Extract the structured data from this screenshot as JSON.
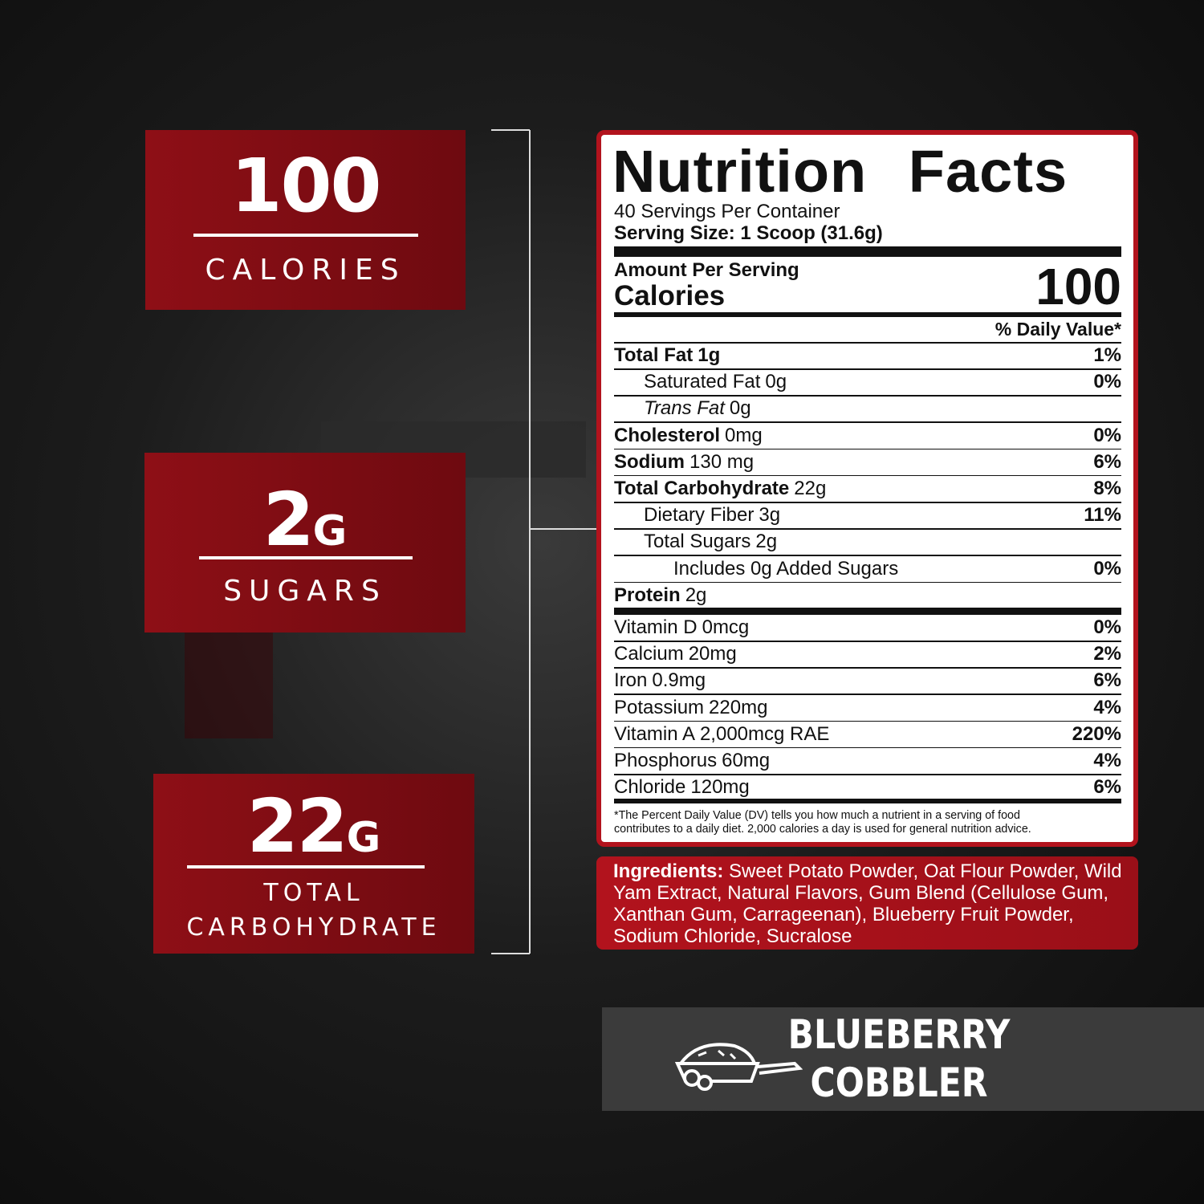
{
  "stats": [
    {
      "value": "100",
      "label": [
        "CALORIES"
      ]
    },
    {
      "value": "2",
      "unit": "G",
      "label": [
        "SUGARS"
      ]
    },
    {
      "value": "22",
      "unit": "G",
      "label": [
        "TOTAL",
        "CARBOHYDRATE"
      ]
    }
  ],
  "nutrition_facts": {
    "title": "Nutrition Facts",
    "servings": "40 Servings Per Container",
    "serving_size": "Serving Size: 1 Scoop (31.6g)",
    "amount_per_serving": "Amount Per Serving",
    "calories_label": "Calories",
    "calories": "100",
    "daily_value_header": "% Daily Value*",
    "nutrients": [
      {
        "name": "Total Fat",
        "amount": "1g",
        "dv": "1%"
      },
      {
        "name": "Saturated Fat",
        "amount": "0g",
        "dv": "0%"
      },
      {
        "name": "Trans Fat",
        "amount": "0g"
      },
      {
        "name": "Cholesterol",
        "amount": "0mg",
        "dv": "0%"
      },
      {
        "name": "Sodium",
        "amount": "130 mg",
        "dv": "6%"
      },
      {
        "name": "Total Carbohydrate",
        "amount": "22g",
        "dv": "8%"
      },
      {
        "name": "Dietary Fiber",
        "amount": "3g",
        "dv": "11%"
      },
      {
        "name": "Total Sugars",
        "amount": "2g"
      },
      {
        "name": "Includes 0g Added Sugars",
        "dv": "0%"
      },
      {
        "name": "Protein",
        "amount": "2g"
      }
    ],
    "vitamins_minerals": [
      {
        "name": "Vitamin D",
        "amount": "0mcg",
        "dv": "0%"
      },
      {
        "name": "Calcium",
        "amount": "20mg",
        "dv": "2%"
      },
      {
        "name": "Iron",
        "amount": "0.9mg",
        "dv": "6%"
      },
      {
        "name": "Potassium",
        "amount": "220mg",
        "dv": "4%"
      },
      {
        "name": "Vitamin A",
        "amount": "2,000mcg RAE",
        "dv": "220%"
      },
      {
        "name": "Phosphorus",
        "amount": "60mg",
        "dv": "4%"
      },
      {
        "name": "Chloride",
        "amount": "120mg",
        "dv": "6%"
      }
    ],
    "footnote": [
      "*The Percent Daily Value (DV) tells you how much a nutrient in a serving of food",
      "contributes to a daily diet.  2,000 calories a day is used for general nutrition advice."
    ]
  },
  "ingredients": {
    "label": "Ingredients:",
    "text": "Sweet Potato Powder, Oat Flour Powder, Wild Yam Extract, Natural Flavors, Gum Blend (Cellulose Gum, Xanthan Gum, Carrageenan), Blueberry Fruit Powder, Sodium Chloride, Sucralose"
  },
  "flavor": [
    "BLUEBERRY",
    "COBBLER"
  ]
}
